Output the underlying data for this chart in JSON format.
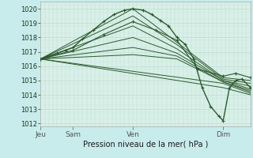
{
  "bg_color": "#c8ecec",
  "plot_bg": "#d8f0e8",
  "grid_color": "#b8d8d0",
  "grid_color2": "#c8e4dc",
  "line_color": "#2d5a2d",
  "title": "Pression niveau de la mer( hPa )",
  "xtick_labels": [
    "Jeu",
    "Sam",
    "Ven",
    "Dim"
  ],
  "xtick_positions": [
    0.0,
    0.155,
    0.44,
    0.87
  ],
  "ylim": [
    1011.8,
    1020.5
  ],
  "yticks": [
    1012,
    1013,
    1014,
    1015,
    1016,
    1017,
    1018,
    1019,
    1020
  ],
  "series": [
    {
      "x": [
        0.0,
        0.04,
        0.08,
        0.12,
        0.155,
        0.2,
        0.25,
        0.3,
        0.35,
        0.4,
        0.44,
        0.49,
        0.53,
        0.57,
        0.61,
        0.65,
        0.69,
        0.73,
        0.77,
        0.81,
        0.85,
        0.87,
        0.9,
        0.93,
        0.96,
        1.0
      ],
      "y": [
        1016.5,
        1016.7,
        1016.9,
        1017.1,
        1017.3,
        1017.9,
        1018.5,
        1019.1,
        1019.6,
        1019.9,
        1020.0,
        1019.9,
        1019.6,
        1019.2,
        1018.8,
        1018.0,
        1017.5,
        1016.5,
        1014.5,
        1013.2,
        1012.5,
        1012.2,
        1014.5,
        1015.0,
        1015.1,
        1014.5
      ],
      "style": "dotted_marker",
      "lw": 1.0
    },
    {
      "x": [
        0.0,
        0.44,
        0.87,
        1.0
      ],
      "y": [
        1016.5,
        1020.0,
        1015.2,
        1015.0
      ],
      "style": "line",
      "lw": 0.7
    },
    {
      "x": [
        0.0,
        0.44,
        0.65,
        0.87,
        1.0
      ],
      "y": [
        1016.5,
        1019.5,
        1017.5,
        1015.1,
        1014.8
      ],
      "style": "line",
      "lw": 0.7
    },
    {
      "x": [
        0.0,
        0.44,
        0.65,
        0.87,
        1.0
      ],
      "y": [
        1016.5,
        1018.8,
        1017.2,
        1015.0,
        1014.6
      ],
      "style": "line",
      "lw": 0.7
    },
    {
      "x": [
        0.0,
        0.44,
        0.65,
        0.87,
        1.0
      ],
      "y": [
        1016.5,
        1018.0,
        1016.9,
        1015.0,
        1014.4
      ],
      "style": "line",
      "lw": 0.7
    },
    {
      "x": [
        0.0,
        0.44,
        0.65,
        0.87,
        1.0
      ],
      "y": [
        1016.5,
        1017.3,
        1016.7,
        1014.9,
        1014.3
      ],
      "style": "line",
      "lw": 0.7
    },
    {
      "x": [
        0.0,
        0.44,
        0.65,
        0.87,
        1.0
      ],
      "y": [
        1016.5,
        1016.8,
        1016.5,
        1014.9,
        1014.2
      ],
      "style": "line",
      "lw": 0.7
    },
    {
      "x": [
        0.0,
        0.87,
        1.0
      ],
      "y": [
        1016.5,
        1014.8,
        1014.1
      ],
      "style": "line",
      "lw": 0.7
    },
    {
      "x": [
        0.0,
        0.87,
        1.0
      ],
      "y": [
        1016.5,
        1014.5,
        1014.0
      ],
      "style": "line",
      "lw": 0.7
    },
    {
      "x": [
        0.0,
        0.155,
        0.3,
        0.44,
        0.55,
        0.65,
        0.75,
        0.87,
        0.93,
        1.0
      ],
      "y": [
        1016.5,
        1017.1,
        1018.2,
        1019.1,
        1018.5,
        1017.8,
        1015.8,
        1015.3,
        1015.5,
        1015.2
      ],
      "style": "dotted_marker",
      "lw": 0.8
    }
  ]
}
